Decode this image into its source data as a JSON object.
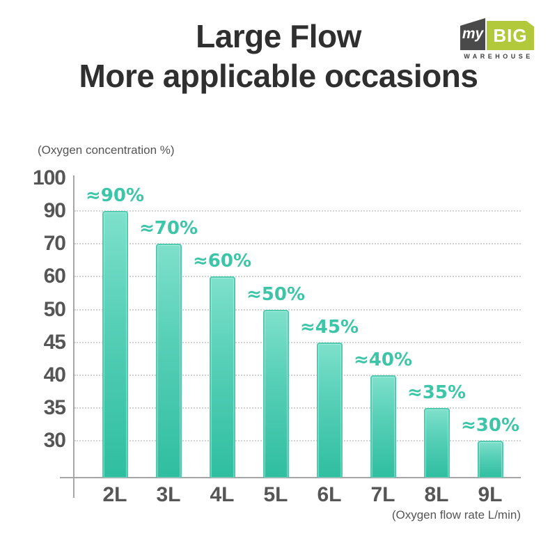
{
  "header": {
    "title_line1": "Large Flow",
    "title_line2": "More applicable occasions"
  },
  "logo": {
    "my": "my",
    "big": "BIG",
    "warehouse": "WAREHOUSE",
    "lime_color": "#b3c93c",
    "dark_color": "#4a4a4a"
  },
  "chart_data": {
    "type": "bar",
    "title": "Large Flow — More applicable occasions",
    "categories": [
      "2L",
      "3L",
      "4L",
      "5L",
      "6L",
      "7L",
      "8L",
      "9L"
    ],
    "values": [
      90,
      70,
      60,
      50,
      45,
      40,
      35,
      30
    ],
    "bar_labels": [
      "≈90%",
      "≈70%",
      "≈60%",
      "≈50%",
      "≈45%",
      "≈40%",
      "≈35%",
      "≈30%"
    ],
    "y_ticks": [
      100,
      90,
      70,
      60,
      50,
      45,
      40,
      35,
      30
    ],
    "ylabel": "(Oxygen concentration %)",
    "xlabel": "(Oxygen flow rate L/min)",
    "ylim": [
      30,
      100
    ],
    "grid": "dotted horizontal line at each tick level except 100",
    "legend": "none",
    "scale_note": "y axis is non-linear: tick values 100,90,70,60,50,45,40,35,30 are evenly spaced",
    "colors": {
      "bar_fill_top": "#7ee0cb",
      "bar_fill_bottom": "#2fbea0",
      "bar_border": "#4fcbb0",
      "bar_label": "#3cc5a7",
      "axis_text": "#565656",
      "title_text": "#2f2f2f"
    }
  }
}
